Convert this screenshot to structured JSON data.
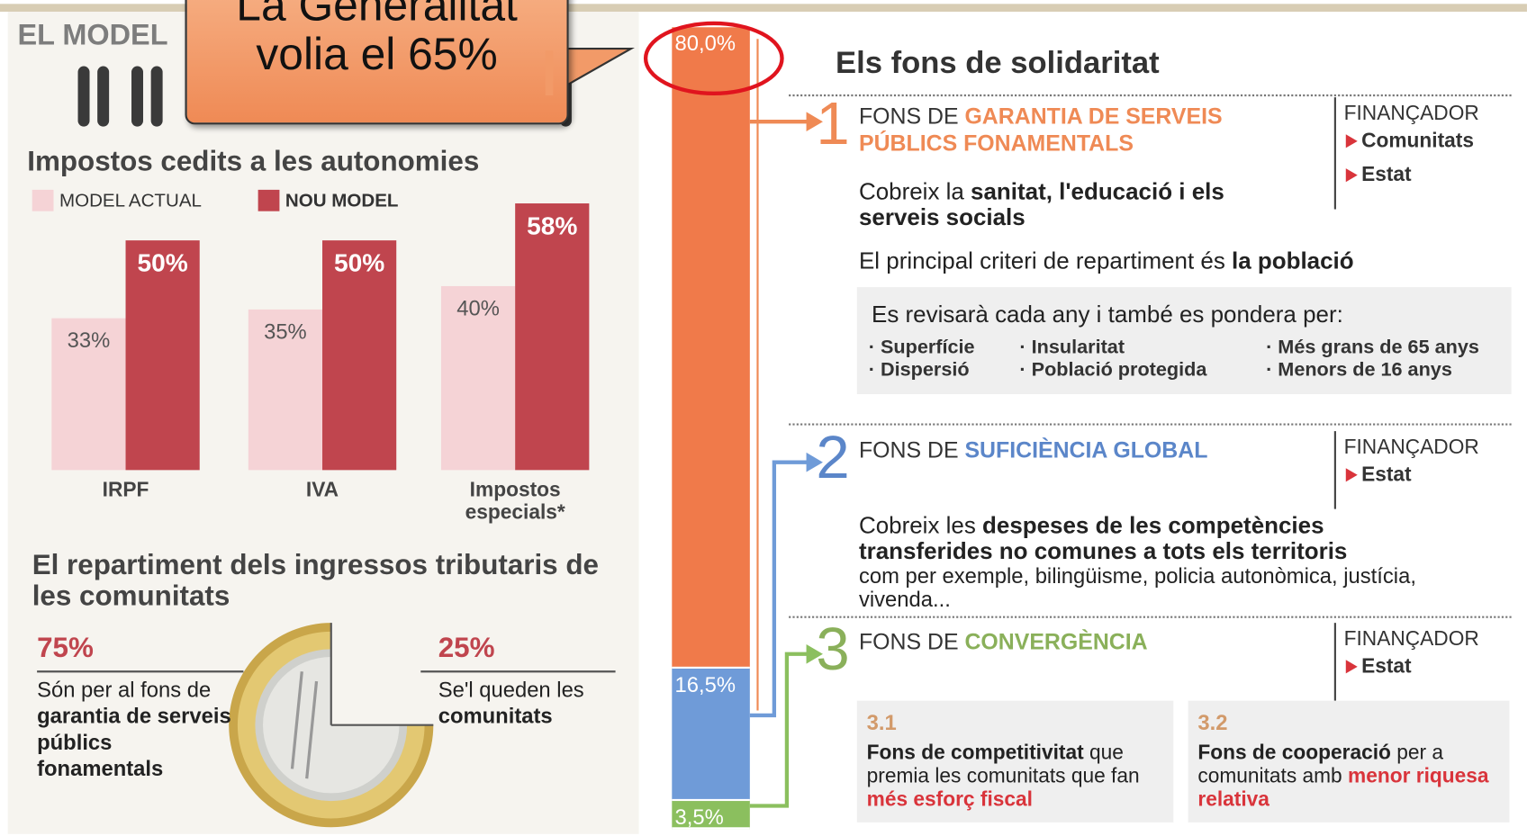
{
  "callout": {
    "lines": [
      "La Generalitat",
      "volia el 65%"
    ]
  },
  "left": {
    "header": "EL MODEL",
    "chart": {
      "type": "bar",
      "title": "Impostos cedits a les autonomies",
      "categories": [
        "IRPF",
        "IVA",
        "Impostos especials*"
      ],
      "series": [
        {
          "name": "MODEL ACTUAL",
          "color": "#f5d3d6",
          "values": [
            33,
            35,
            40
          ],
          "value_labels": [
            "33%",
            "35%",
            "40%"
          ]
        },
        {
          "name": "NOU MODEL",
          "color": "#c0454e",
          "values": [
            50,
            50,
            58
          ],
          "value_labels": [
            "50%",
            "50%",
            "58%"
          ]
        }
      ]
    },
    "split": {
      "title": "El repartiment dels ingressos tributaris de les comunitats",
      "items": [
        {
          "value": 75,
          "label": "75%",
          "parts": [
            {
              "text": "Són per al fons de ",
              "style": "plain"
            },
            {
              "text": "garantia de serveis públics fonamentals",
              "style": "bold"
            }
          ]
        },
        {
          "value": 25,
          "label": "25%",
          "parts": [
            {
              "text": "Se'l queden les ",
              "style": "plain"
            },
            {
              "text": "comunitats",
              "style": "bold"
            }
          ]
        }
      ]
    }
  },
  "stack": {
    "type": "bar",
    "values": [
      80,
      16.5,
      3.5
    ],
    "value_labels": [
      "80,0%",
      "16,5%",
      "3,5%"
    ],
    "colors": [
      "#f07a4a",
      "#6f9bd8",
      "#8bbf5e"
    ]
  },
  "right": {
    "title": "Els fons de solidaritat",
    "financer_label": "FINANÇADOR",
    "funds": [
      {
        "number": "1",
        "color": "#ef8a55",
        "name": [
          {
            "text": "FONS DE ",
            "style": "plain"
          },
          {
            "text": "GARANTIA DE SERVEIS PÚBLICS FONAMENTALS",
            "style": "accent"
          }
        ],
        "financers": [
          "Comunitats",
          "Estat"
        ],
        "description": [
          {
            "text": "Cobreix la ",
            "style": "plain"
          },
          {
            "text": "sanitat, l'educació i els serveis socials",
            "style": "bold"
          }
        ],
        "criterion": [
          {
            "text": "El principal criteri de repartiment és ",
            "style": "plain"
          },
          {
            "text": "la població",
            "style": "bold"
          }
        ],
        "box": {
          "intro": "Es revisarà cada any i també es pondera per:",
          "items": [
            "· Superfície",
            "· Dispersió",
            "· Insularitat",
            "· Població protegida",
            "· Més grans de 65 anys",
            "· Menors de 16 anys"
          ]
        }
      },
      {
        "number": "2",
        "color": "#5b86c9",
        "name": [
          {
            "text": "FONS DE ",
            "style": "plain"
          },
          {
            "text": "SUFICIÈNCIA GLOBAL",
            "style": "accent"
          }
        ],
        "financers": [
          "Estat"
        ],
        "description": [
          {
            "text": "Cobreix les ",
            "style": "plain"
          },
          {
            "text": "despeses de les competències transferides no comunes a tots els territoris",
            "style": "bold"
          },
          {
            "text": " com per exemple, bilingüisme, policia autonòmica, justícia, vivenda...",
            "style": "small"
          }
        ]
      },
      {
        "number": "3",
        "color": "#8ab05a",
        "name": [
          {
            "text": "FONS DE ",
            "style": "plain"
          },
          {
            "text": "CONVERGÈNCIA",
            "style": "accent"
          }
        ],
        "financers": [
          "Estat"
        ],
        "subs": [
          {
            "number": "3.1",
            "parts": [
              {
                "text": "Fons de competitivitat",
                "style": "bold"
              },
              {
                "text": " que premia les comunitats que fan ",
                "style": "plain"
              },
              {
                "text": "més esforç fiscal",
                "style": "red"
              }
            ]
          },
          {
            "number": "3.2",
            "parts": [
              {
                "text": "Fons de cooperació",
                "style": "bold"
              },
              {
                "text": " per a comunitats amb ",
                "style": "plain"
              },
              {
                "text": "menor riquesa relativa",
                "style": "red"
              }
            ]
          }
        ]
      }
    ]
  }
}
